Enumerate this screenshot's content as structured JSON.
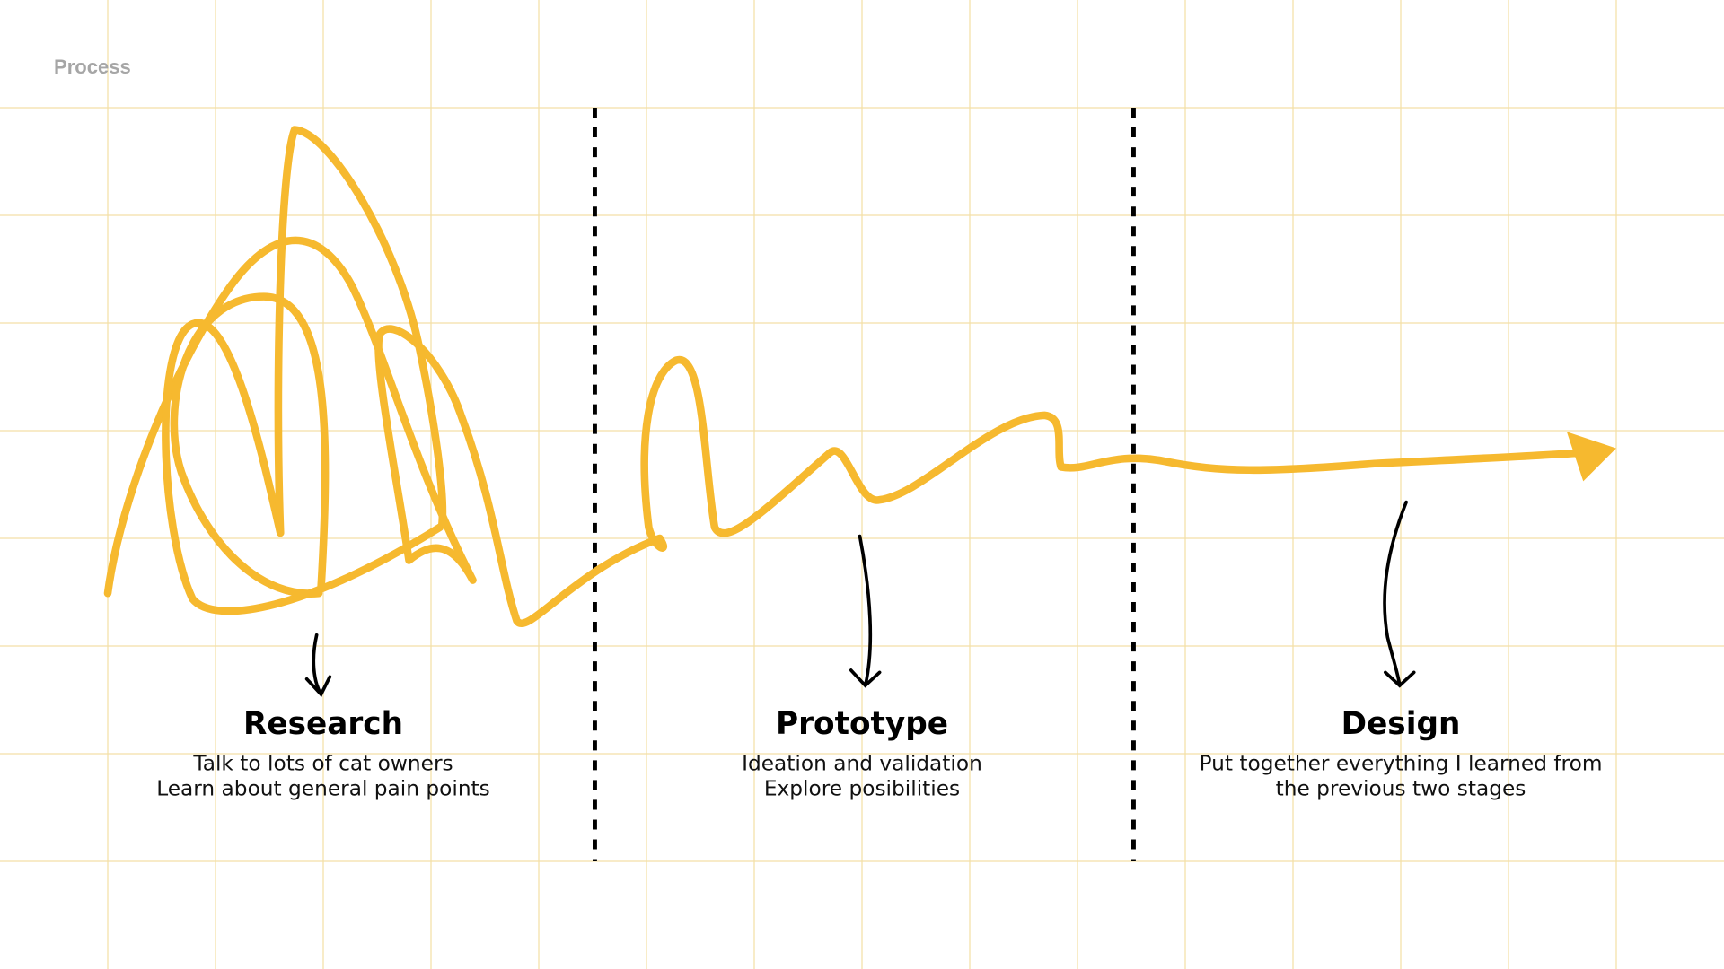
{
  "header": {
    "title": "Process"
  },
  "stages": [
    {
      "title": "Research",
      "lines": [
        "Talk to lots of cat owners",
        "Learn about general pain points"
      ]
    },
    {
      "title": "Prototype",
      "lines": [
        "Ideation and validation",
        "Explore posibilities"
      ]
    },
    {
      "title": "Design",
      "lines": [
        "Put together everything I learned from",
        "the previous two stages"
      ]
    }
  ]
}
